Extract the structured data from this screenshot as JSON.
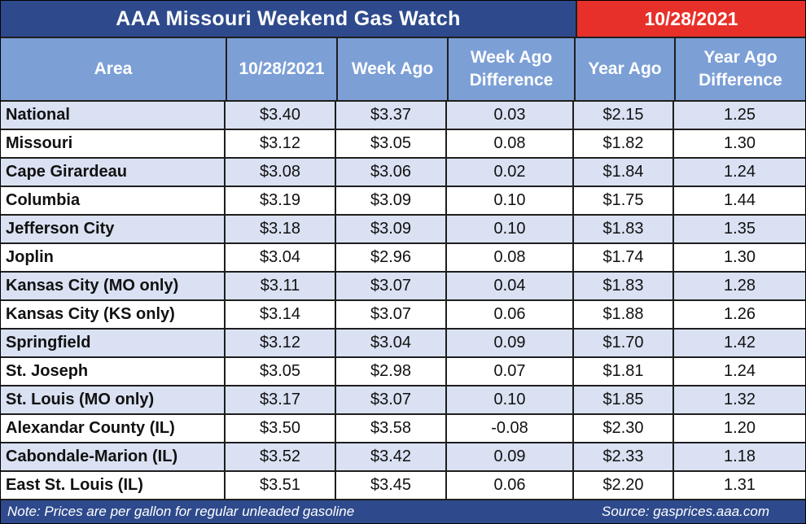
{
  "title": "AAA Missouri Weekend Gas Watch",
  "date_badge": "10/28/2021",
  "columns": [
    "Area",
    "10/28/2021",
    "Week Ago",
    "Week Ago\nDifference",
    "Year Ago",
    "Year Ago\nDifference"
  ],
  "rows": [
    {
      "area": "National",
      "current": "$3.40",
      "week_ago": "$3.37",
      "week_diff": "0.03",
      "year_ago": "$2.15",
      "year_diff": "1.25"
    },
    {
      "area": "Missouri",
      "current": "$3.12",
      "week_ago": "$3.05",
      "week_diff": "0.08",
      "year_ago": "$1.82",
      "year_diff": "1.30"
    },
    {
      "area": "Cape Girardeau",
      "current": "$3.08",
      "week_ago": "$3.06",
      "week_diff": "0.02",
      "year_ago": "$1.84",
      "year_diff": "1.24"
    },
    {
      "area": "Columbia",
      "current": "$3.19",
      "week_ago": "$3.09",
      "week_diff": "0.10",
      "year_ago": "$1.75",
      "year_diff": "1.44"
    },
    {
      "area": "Jefferson City",
      "current": "$3.18",
      "week_ago": "$3.09",
      "week_diff": "0.10",
      "year_ago": "$1.83",
      "year_diff": "1.35"
    },
    {
      "area": "Joplin",
      "current": "$3.04",
      "week_ago": "$2.96",
      "week_diff": "0.08",
      "year_ago": "$1.74",
      "year_diff": "1.30"
    },
    {
      "area": "Kansas City (MO only)",
      "current": "$3.11",
      "week_ago": "$3.07",
      "week_diff": "0.04",
      "year_ago": "$1.83",
      "year_diff": "1.28"
    },
    {
      "area": "Kansas City (KS only)",
      "current": "$3.14",
      "week_ago": "$3.07",
      "week_diff": "0.06",
      "year_ago": "$1.88",
      "year_diff": "1.26"
    },
    {
      "area": "Springfield",
      "current": "$3.12",
      "week_ago": "$3.04",
      "week_diff": "0.09",
      "year_ago": "$1.70",
      "year_diff": "1.42"
    },
    {
      "area": "St. Joseph",
      "current": "$3.05",
      "week_ago": "$2.98",
      "week_diff": "0.07",
      "year_ago": "$1.81",
      "year_diff": "1.24"
    },
    {
      "area": "St. Louis (MO only)",
      "current": "$3.17",
      "week_ago": "$3.07",
      "week_diff": "0.10",
      "year_ago": "$1.85",
      "year_diff": "1.32"
    },
    {
      "area": "Alexandar County (IL)",
      "current": "$3.50",
      "week_ago": "$3.58",
      "week_diff": "-0.08",
      "year_ago": "$2.30",
      "year_diff": "1.20"
    },
    {
      "area": "Cabondale-Marion (IL)",
      "current": "$3.52",
      "week_ago": "$3.42",
      "week_diff": "0.09",
      "year_ago": "$2.33",
      "year_diff": "1.18"
    },
    {
      "area": "East St. Louis (IL)",
      "current": "$3.51",
      "week_ago": "$3.45",
      "week_diff": "0.06",
      "year_ago": "$2.20",
      "year_diff": "1.31"
    }
  ],
  "footer": {
    "note": "Note: Prices are per gallon for regular unleaded gasoline",
    "source": "Source: gasprices.aaa.com"
  },
  "colors": {
    "title_bg": "#2e4a8c",
    "date_bg": "#e8302a",
    "header_bg": "#7c9fd6",
    "shaded_row": "#d9e1f2"
  }
}
